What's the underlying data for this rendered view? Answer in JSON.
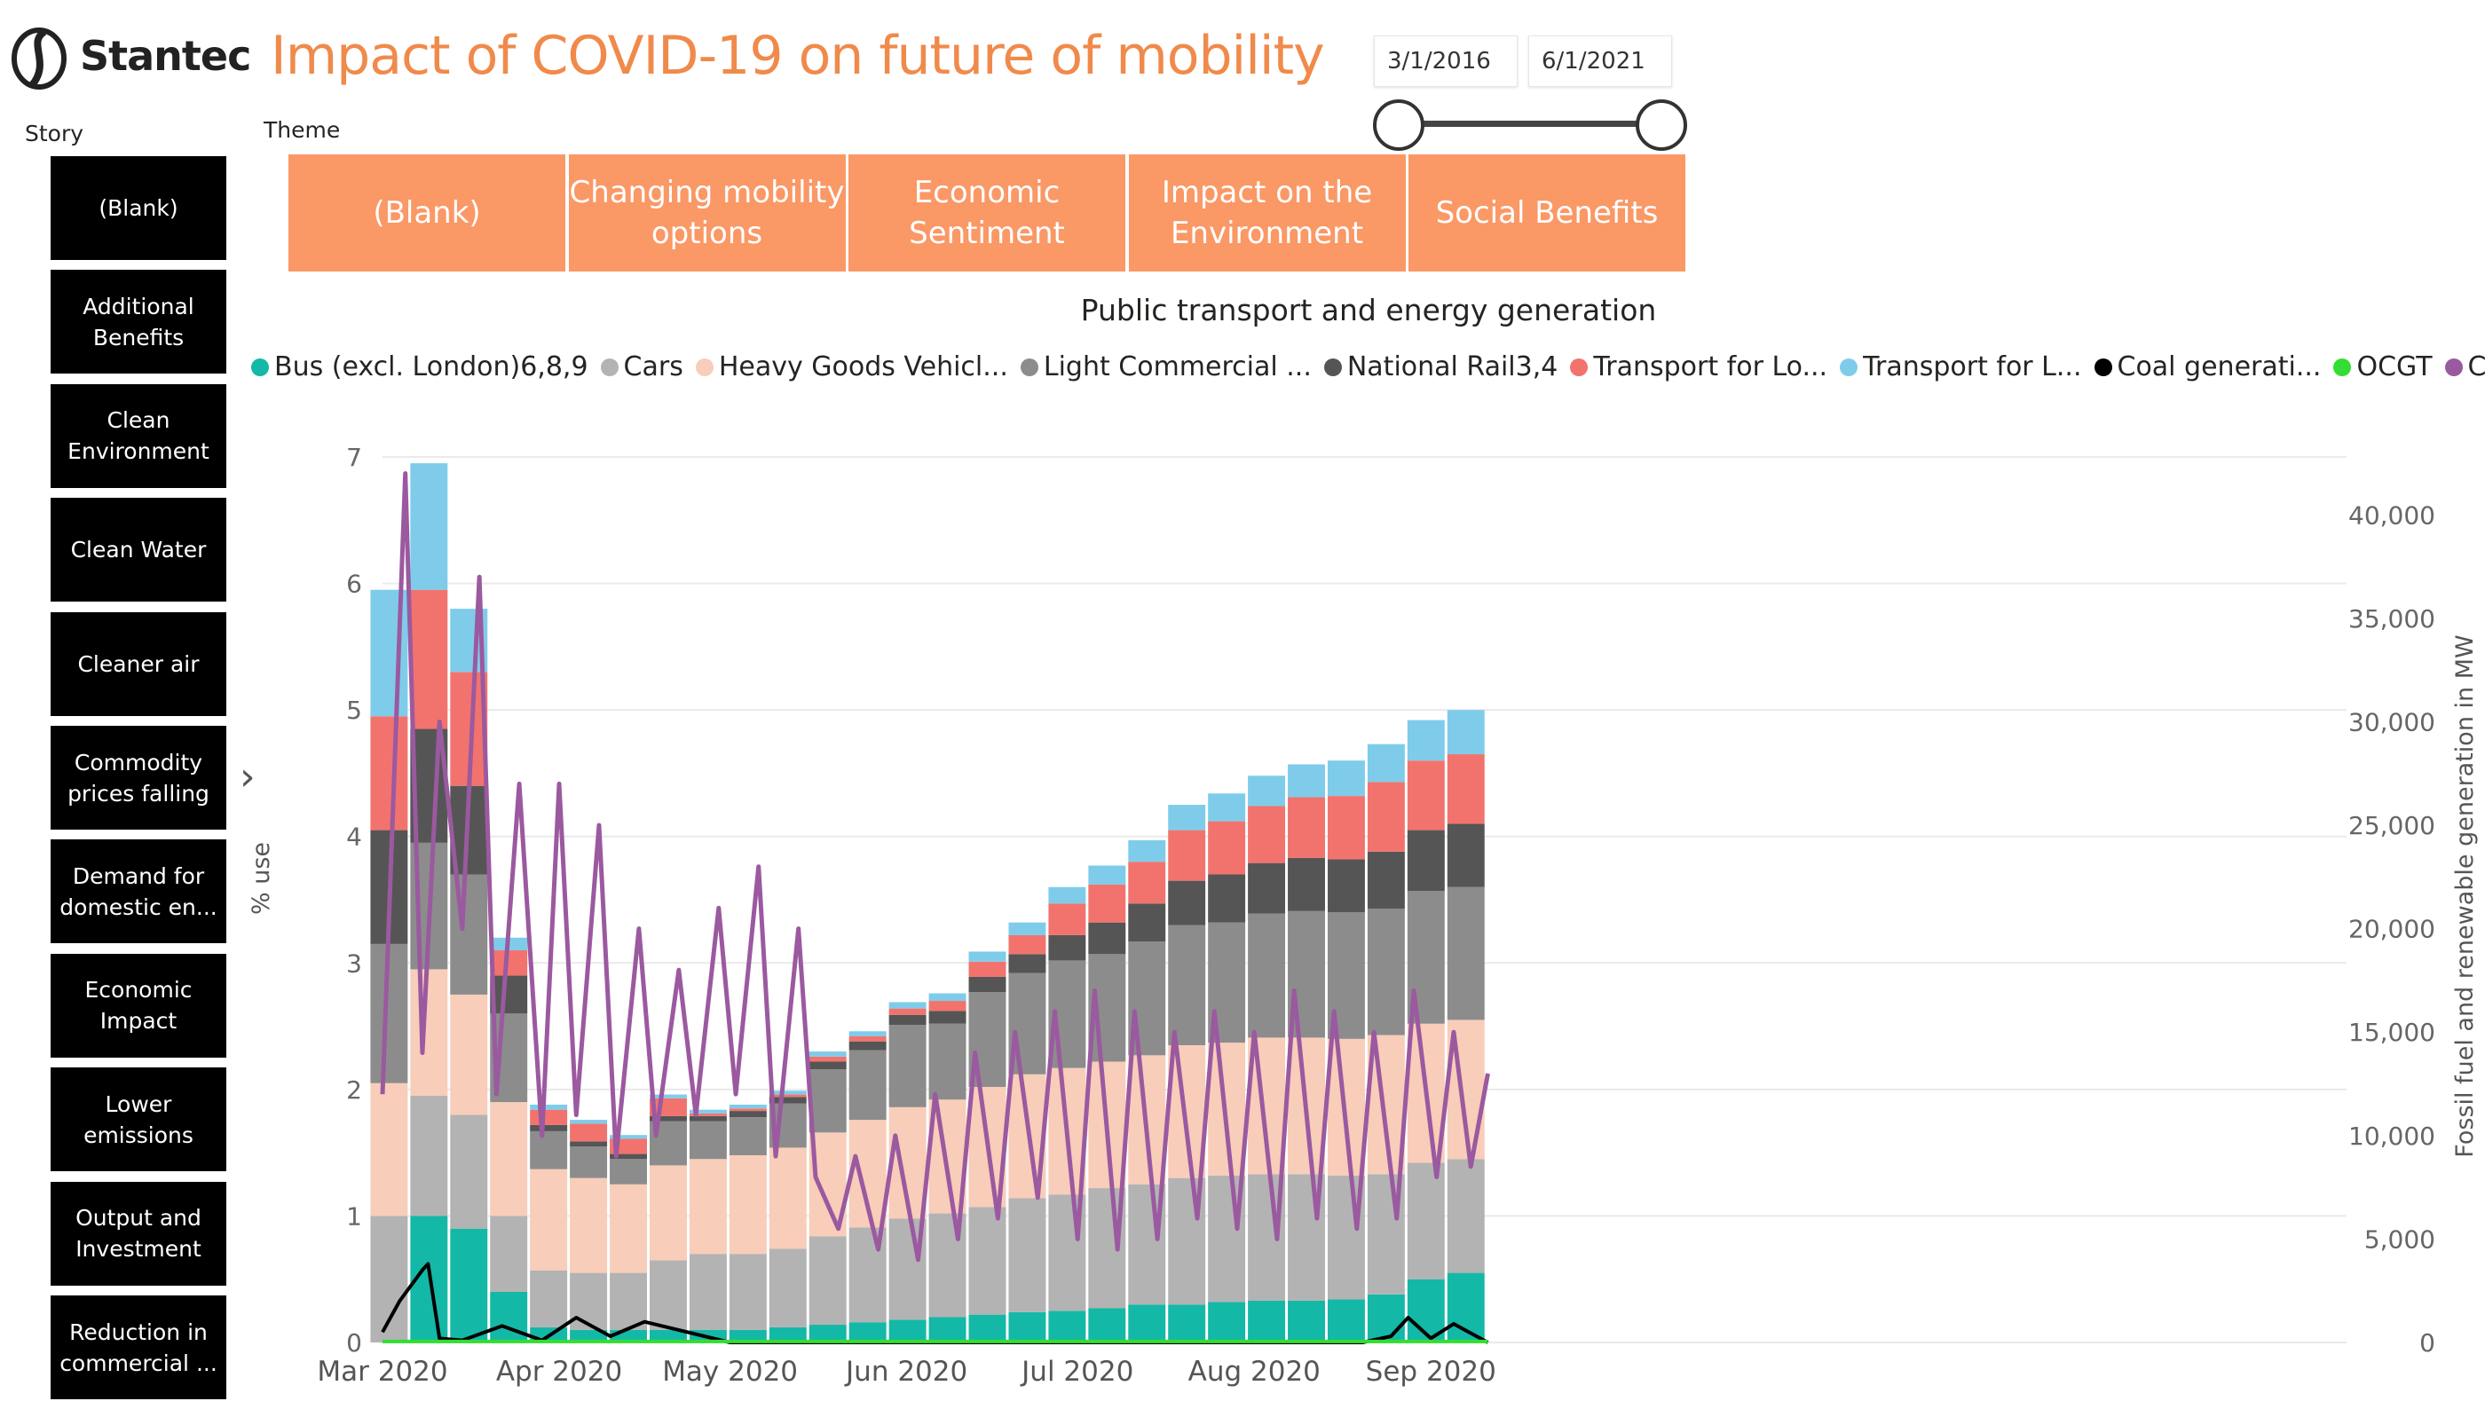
{
  "brand": {
    "name": "Stantec"
  },
  "header": {
    "title": "Impact of COVID-19 on future of mobility"
  },
  "date_range": {
    "start": "3/1/2016",
    "end": "6/1/2021"
  },
  "story": {
    "label": "Story",
    "items": [
      "(Blank)",
      "Additional Benefits",
      "Clean Environment",
      "Clean Water",
      "Cleaner air",
      "Commodity prices falling",
      "Demand for domestic en...",
      "Economic Impact",
      "Lower emissions",
      "Output and Investment",
      "Reduction in commercial ..."
    ]
  },
  "theme": {
    "label": "Theme",
    "items": [
      "(Blank)",
      "Changing mobility options",
      "Economic Sentiment",
      "Impact on the Environment",
      "Social Benefits"
    ],
    "color": "#FA9866"
  },
  "chart_data": {
    "type": "bar",
    "title": "Public transport and energy generation",
    "ylabel": "% use",
    "y2label": "Fossil fuel and renewable generation in MW",
    "ylim": [
      0,
      7
    ],
    "y2lim": [
      0,
      42800
    ],
    "yticks": [
      "0",
      "1",
      "2",
      "3",
      "4",
      "5",
      "6",
      "7"
    ],
    "y2ticks": [
      "0",
      "5,000",
      "10,000",
      "15,000",
      "20,000",
      "25,000",
      "30,000",
      "35,000",
      "40,000"
    ],
    "xticks": [
      "Mar 2020",
      "Apr 2020",
      "May 2020",
      "Jun 2020",
      "Jul 2020",
      "Aug 2020",
      "Sep 2020"
    ],
    "grid": true,
    "legend_position": "top",
    "x": [
      "2020-03-02",
      "2020-03-09",
      "2020-03-16",
      "2020-03-23",
      "2020-03-30",
      "2020-04-06",
      "2020-04-13",
      "2020-04-20",
      "2020-04-27",
      "2020-05-04",
      "2020-05-11",
      "2020-05-18",
      "2020-05-25",
      "2020-06-01",
      "2020-06-08",
      "2020-06-15",
      "2020-06-22",
      "2020-06-29",
      "2020-07-06",
      "2020-07-13",
      "2020-07-20",
      "2020-07-27",
      "2020-08-03",
      "2020-08-10",
      "2020-08-17",
      "2020-08-24",
      "2020-08-31",
      "2020-09-07"
    ],
    "stacked_series": [
      {
        "name": "Bus (excl. London)6,8,9",
        "color": "#14B8A6",
        "values": [
          0,
          1.0,
          0.9,
          0.4,
          0.12,
          0.1,
          0.1,
          0.1,
          0.1,
          0.1,
          0.12,
          0.14,
          0.16,
          0.18,
          0.2,
          0.22,
          0.24,
          0.25,
          0.27,
          0.3,
          0.3,
          0.32,
          0.33,
          0.33,
          0.34,
          0.38,
          0.5,
          0.55
        ]
      },
      {
        "name": "Cars",
        "color": "#B3B3B3",
        "values": [
          1.0,
          0.95,
          0.9,
          0.6,
          0.45,
          0.45,
          0.45,
          0.55,
          0.6,
          0.6,
          0.62,
          0.7,
          0.75,
          0.8,
          0.82,
          0.85,
          0.9,
          0.92,
          0.95,
          0.95,
          1.0,
          1.0,
          1.0,
          1.0,
          0.98,
          0.95,
          0.92,
          0.9
        ]
      },
      {
        "name": "Heavy Goods Vehicl...",
        "color": "#F8CDB9",
        "values": [
          1.05,
          1.0,
          0.95,
          0.9,
          0.8,
          0.75,
          0.7,
          0.75,
          0.75,
          0.78,
          0.8,
          0.82,
          0.85,
          0.88,
          0.9,
          0.95,
          0.98,
          1.0,
          1.0,
          1.02,
          1.05,
          1.05,
          1.08,
          1.08,
          1.08,
          1.1,
          1.1,
          1.1
        ]
      },
      {
        "name": "Light Commercial ...",
        "color": "#8C8C8C",
        "values": [
          1.1,
          1.0,
          0.95,
          0.7,
          0.3,
          0.25,
          0.2,
          0.35,
          0.3,
          0.3,
          0.35,
          0.5,
          0.55,
          0.65,
          0.6,
          0.75,
          0.8,
          0.85,
          0.85,
          0.9,
          0.95,
          0.95,
          0.98,
          1.0,
          1.0,
          1.0,
          1.05,
          1.05
        ]
      },
      {
        "name": "National Rail3,4",
        "color": "#555555",
        "values": [
          0.9,
          0.9,
          0.7,
          0.3,
          0.05,
          0.04,
          0.04,
          0.04,
          0.04,
          0.05,
          0.05,
          0.06,
          0.07,
          0.08,
          0.1,
          0.12,
          0.15,
          0.2,
          0.25,
          0.3,
          0.35,
          0.38,
          0.4,
          0.42,
          0.42,
          0.45,
          0.48,
          0.5
        ]
      },
      {
        "name": "Transport for Lo...",
        "color": "#F2736D",
        "values": [
          0.9,
          1.1,
          0.9,
          0.2,
          0.12,
          0.14,
          0.12,
          0.14,
          0.02,
          0.02,
          0.02,
          0.04,
          0.04,
          0.05,
          0.08,
          0.12,
          0.15,
          0.25,
          0.3,
          0.33,
          0.4,
          0.42,
          0.45,
          0.48,
          0.5,
          0.55,
          0.55,
          0.55
        ]
      },
      {
        "name": "Transport for L...",
        "color": "#7FCCEA",
        "values": [
          1.0,
          1.0,
          0.5,
          0.1,
          0.04,
          0.03,
          0.03,
          0.03,
          0.03,
          0.03,
          0.03,
          0.04,
          0.04,
          0.05,
          0.06,
          0.08,
          0.1,
          0.13,
          0.15,
          0.17,
          0.2,
          0.22,
          0.24,
          0.26,
          0.28,
          0.3,
          0.32,
          0.35
        ]
      }
    ],
    "line_series": [
      {
        "name": "Coal generati...",
        "color": "#000000",
        "x": [
          "2020-03-01",
          "2020-03-04",
          "2020-03-08",
          "2020-03-09",
          "2020-03-11",
          "2020-03-15",
          "2020-03-22",
          "2020-03-29",
          "2020-04-04",
          "2020-04-10",
          "2020-04-16",
          "2020-05-01",
          "2020-08-20",
          "2020-08-25",
          "2020-08-28",
          "2020-09-01",
          "2020-09-05",
          "2020-09-11"
        ],
        "values": [
          500,
          2000,
          3500,
          3800,
          200,
          100,
          800,
          100,
          1200,
          300,
          1000,
          0,
          0,
          300,
          1200,
          200,
          900,
          0
        ]
      },
      {
        "name": "OCGT",
        "color": "#33DD33",
        "x": [
          "2020-03-01",
          "2020-09-11"
        ],
        "values": [
          50,
          50
        ]
      },
      {
        "name": "CCGT",
        "color": "#9B59A0",
        "x": [
          "2020-03-01",
          "2020-03-05",
          "2020-03-08",
          "2020-03-11",
          "2020-03-15",
          "2020-03-18",
          "2020-03-21",
          "2020-03-25",
          "2020-03-29",
          "2020-04-01",
          "2020-04-04",
          "2020-04-08",
          "2020-04-11",
          "2020-04-15",
          "2020-04-18",
          "2020-04-22",
          "2020-04-25",
          "2020-04-29",
          "2020-05-02",
          "2020-05-06",
          "2020-05-09",
          "2020-05-13",
          "2020-05-16",
          "2020-05-20",
          "2020-05-23",
          "2020-05-27",
          "2020-05-30",
          "2020-06-03",
          "2020-06-06",
          "2020-06-10",
          "2020-06-13",
          "2020-06-17",
          "2020-06-20",
          "2020-06-24",
          "2020-06-27",
          "2020-07-01",
          "2020-07-04",
          "2020-07-08",
          "2020-07-11",
          "2020-07-15",
          "2020-07-18",
          "2020-07-22",
          "2020-07-25",
          "2020-07-29",
          "2020-08-01",
          "2020-08-05",
          "2020-08-08",
          "2020-08-12",
          "2020-08-15",
          "2020-08-19",
          "2020-08-22",
          "2020-08-26",
          "2020-08-29",
          "2020-09-02",
          "2020-09-05",
          "2020-09-08",
          "2020-09-11"
        ],
        "values": [
          12000,
          42000,
          14000,
          30000,
          20000,
          37000,
          12000,
          27000,
          10000,
          27000,
          11000,
          25000,
          9000,
          20000,
          10000,
          18000,
          11000,
          21000,
          12000,
          23000,
          9000,
          20000,
          8000,
          5500,
          9000,
          4500,
          10000,
          4000,
          12000,
          5000,
          14000,
          6000,
          15000,
          7000,
          16000,
          5000,
          17000,
          4500,
          16000,
          5000,
          15000,
          6000,
          16000,
          5500,
          15000,
          5000,
          17000,
          6000,
          16000,
          5500,
          15000,
          6000,
          17000,
          8000,
          15000,
          8500,
          13000
        ]
      }
    ]
  }
}
